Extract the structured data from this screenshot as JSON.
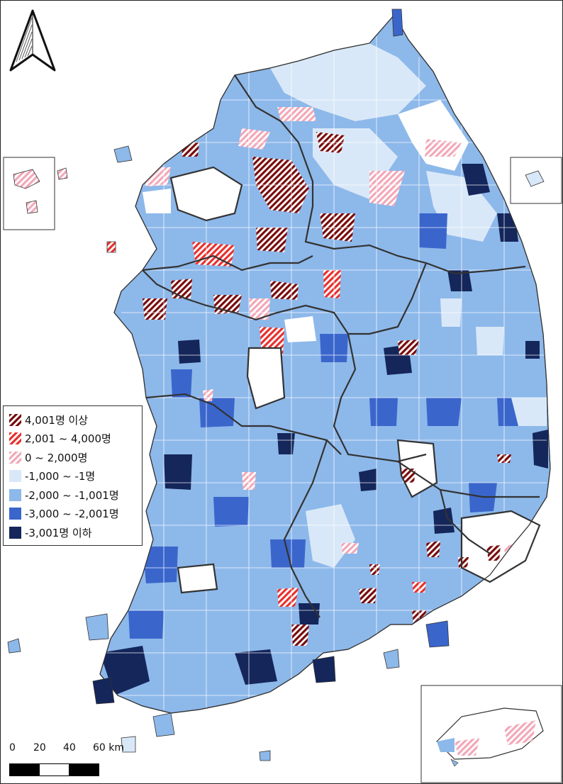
{
  "legend": {
    "items": [
      {
        "label": "4,001명 이상",
        "color": "#7a0c0c",
        "pattern": "hatch-dark"
      },
      {
        "label": "2,001 ~ 4,000명",
        "color": "#e8312e",
        "pattern": "hatch-red"
      },
      {
        "label": "0 ~ 2,000명",
        "color": "#f2a8b8",
        "pattern": "hatch-pink"
      },
      {
        "label": "-1,000 ~ -1명",
        "color": "#d9e8f8"
      },
      {
        "label": "-2,000 ~ -1,001명",
        "color": "#8db8ea"
      },
      {
        "label": "-3,000 ~ -2,001명",
        "color": "#3a66cc"
      },
      {
        "label": "-3,001명 이하",
        "color": "#14265a"
      }
    ]
  },
  "scale": {
    "ticks": [
      "0",
      "20",
      "40",
      "60 km"
    ]
  },
  "north_arrow": {
    "icon": "north-arrow-icon"
  },
  "colors": {
    "region_border": "#333333",
    "subregion_border": "#ffffff",
    "land_no_data": "#ffffff"
  }
}
